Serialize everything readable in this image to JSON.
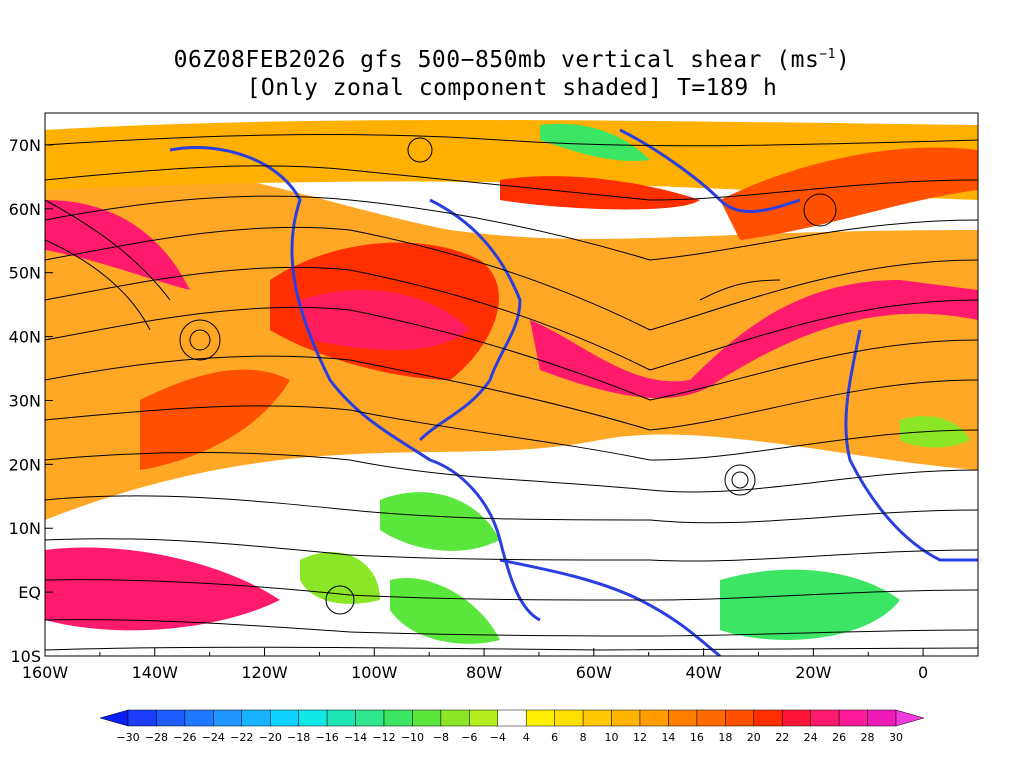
{
  "title": {
    "line1_main": "06Z08FEB2026 gfs 500−850mb vertical shear (ms",
    "line1_sup": "−1",
    "line1_end": ")",
    "line2": "[Only zonal component shaded] T=189 h"
  },
  "map": {
    "lon_labels": [
      "160W",
      "140W",
      "120W",
      "100W",
      "80W",
      "60W",
      "40W",
      "20W",
      "0"
    ],
    "lat_labels": [
      "70N",
      "60N",
      "50N",
      "40N",
      "30N",
      "20N",
      "10N",
      "EQ",
      "10S"
    ],
    "lon_range": [
      -160,
      10
    ],
    "lat_range": [
      -10,
      75
    ],
    "land_outline_color": "#2b3fe0"
  },
  "colorbar": {
    "labels": [
      "−30",
      "−28",
      "−26",
      "−24",
      "−22",
      "−20",
      "−18",
      "−16",
      "−14",
      "−12",
      "−10",
      "−8",
      "−6",
      "−4",
      "4",
      "6",
      "8",
      "10",
      "12",
      "14",
      "16",
      "18",
      "20",
      "22",
      "24",
      "26",
      "28",
      "30"
    ],
    "colors": [
      "#0a1ff5",
      "#1a3dff",
      "#1e5cff",
      "#1f78ff",
      "#2196ff",
      "#18b4ff",
      "#0ed2ff",
      "#10e8e8",
      "#1de6b4",
      "#2ee68c",
      "#3ce664",
      "#5ae63c",
      "#8ce628",
      "#b4ee1e",
      "#ffffff",
      "#fff000",
      "#ffe000",
      "#ffc800",
      "#ffb400",
      "#ff9c00",
      "#ff8000",
      "#ff6a00",
      "#ff5000",
      "#ff2f00",
      "#ff1438",
      "#ff1a6e",
      "#ff1a99",
      "#f01ab8",
      "#f03cdc"
    ]
  }
}
